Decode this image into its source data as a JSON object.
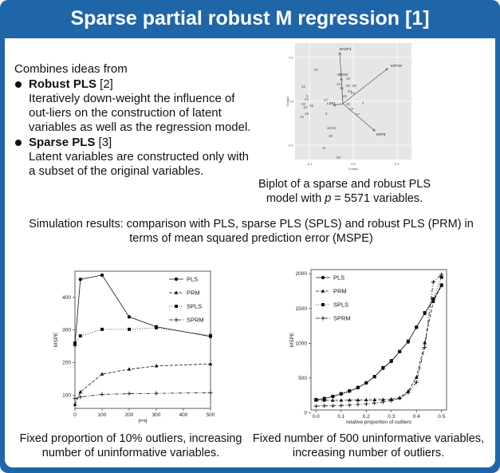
{
  "title": "Sparse partial robust M regression [1]",
  "intro": {
    "lead": "Combines ideas from",
    "bullets": [
      {
        "head": "Robust PLS",
        "ref": " [2]",
        "desc": "Iteratively down-weight the influence of out-liers on the construction of latent variables as well as the regression model."
      },
      {
        "head": "Sparse PLS",
        "ref": " [3]",
        "desc": "Latent variables are constructed only with a subset of the original variables."
      }
    ]
  },
  "biplot": {
    "caption_line1": "Biplot of a sparse and robust PLS",
    "caption_pre": "model with ",
    "caption_var": "p",
    "caption_post": " = 5571 variables.",
    "xlabel": "Comp1",
    "ylabel": "Comp2",
    "xticks": [
      "-0.1",
      "0.0",
      "0.1"
    ],
    "yticks": [
      "0.1",
      "0.0",
      "-0.1"
    ],
    "vector_labels": [
      "BASP1",
      "KRT19",
      "SRGN",
      "KRT8",
      "LSP1"
    ],
    "point_labels": [
      "57",
      "42",
      "16",
      "58",
      "60",
      "22",
      "36",
      "23",
      "6",
      "45",
      "54",
      "33",
      "18",
      "19",
      "1",
      "35",
      "34",
      "27",
      "52",
      "48",
      "56",
      "38",
      "11",
      "50",
      "14",
      "8",
      "40",
      "17"
    ]
  },
  "simulation_text": "Simulation results: comparison with PLS, sparse PLS (SPLS) and robust PLS (PRM) in terms of mean squared prediction error (MSPE)",
  "chart_data": [
    {
      "type": "line",
      "title": "",
      "xlabel": "p=q",
      "ylabel": "MSPE",
      "xlim": [
        0,
        500
      ],
      "ylim": [
        60,
        480
      ],
      "xticks": [
        0,
        100,
        200,
        300,
        400,
        500
      ],
      "yticks": [
        100,
        200,
        300,
        400
      ],
      "legend": "top-right",
      "series": [
        {
          "name": "PLS",
          "style": "solid",
          "marker": "circle",
          "x": [
            0,
            20,
            100,
            200,
            300,
            500
          ],
          "y": [
            255,
            455,
            468,
            340,
            310,
            280
          ]
        },
        {
          "name": "PRM",
          "style": "dashed",
          "marker": "triangle",
          "x": [
            0,
            20,
            100,
            200,
            300,
            500
          ],
          "y": [
            72,
            110,
            165,
            180,
            190,
            196
          ]
        },
        {
          "name": "SPLS",
          "style": "dotted",
          "marker": "square",
          "x": [
            0,
            20,
            100,
            200,
            300,
            500
          ],
          "y": [
            260,
            282,
            302,
            302,
            307,
            283
          ]
        },
        {
          "name": "SPRM",
          "style": "dotdash",
          "marker": "plus",
          "x": [
            0,
            20,
            100,
            200,
            300,
            500
          ],
          "y": [
            90,
            95,
            103,
            105,
            106,
            108
          ]
        }
      ]
    },
    {
      "type": "line",
      "title": "",
      "xlabel": "relative proportion of outliers",
      "ylabel": "MSPE",
      "xlim": [
        -0.02,
        0.52
      ],
      "ylim": [
        40,
        2060
      ],
      "xticks": [
        0.0,
        0.1,
        0.2,
        0.3,
        0.4,
        0.5
      ],
      "yticks": [
        0,
        500,
        1000,
        1500,
        2000
      ],
      "legend": "top-left",
      "series": [
        {
          "name": "PLS",
          "style": "solid",
          "marker": "circle",
          "x": [
            0.0,
            0.033,
            0.067,
            0.1,
            0.133,
            0.167,
            0.2,
            0.233,
            0.267,
            0.3,
            0.333,
            0.367,
            0.4,
            0.433,
            0.467,
            0.5
          ],
          "y": [
            185,
            205,
            235,
            270,
            310,
            360,
            430,
            520,
            640,
            740,
            880,
            1020,
            1230,
            1430,
            1620,
            1840
          ]
        },
        {
          "name": "PRM",
          "style": "dashed",
          "marker": "triangle",
          "x": [
            0.0,
            0.033,
            0.067,
            0.1,
            0.133,
            0.167,
            0.2,
            0.233,
            0.267,
            0.3,
            0.333,
            0.367,
            0.4,
            0.433,
            0.467,
            0.5
          ],
          "y": [
            180,
            180,
            178,
            180,
            182,
            183,
            185,
            187,
            190,
            195,
            215,
            310,
            510,
            1010,
            1600,
            1830
          ]
        },
        {
          "name": "SPLS",
          "style": "dotted",
          "marker": "square",
          "x": [
            0.0,
            0.033,
            0.067,
            0.1,
            0.133,
            0.167,
            0.2,
            0.233,
            0.267,
            0.3,
            0.333,
            0.367,
            0.4,
            0.433,
            0.467,
            0.5
          ],
          "y": [
            190,
            205,
            235,
            275,
            315,
            365,
            430,
            520,
            650,
            750,
            880,
            1030,
            1230,
            1440,
            1640,
            1950
          ]
        },
        {
          "name": "SPRM",
          "style": "dotdash",
          "marker": "plus",
          "x": [
            0.0,
            0.033,
            0.067,
            0.1,
            0.133,
            0.167,
            0.2,
            0.233,
            0.267,
            0.3,
            0.333,
            0.367,
            0.4,
            0.433,
            0.467,
            0.5
          ],
          "y": [
            95,
            100,
            100,
            105,
            110,
            120,
            125,
            140,
            155,
            175,
            210,
            290,
            440,
            940,
            1880,
            1990
          ]
        }
      ]
    }
  ],
  "captions": {
    "left": "Fixed proportion of 10% outliers, increasing number of uninformative variables.",
    "right": "Fixed number of 500 uninformative variables, increasing number of outliers."
  },
  "colors": {
    "frame": "#1f66a8",
    "ink": "#111111"
  }
}
